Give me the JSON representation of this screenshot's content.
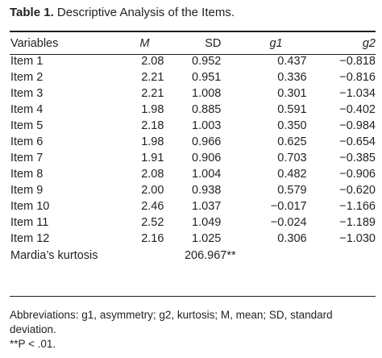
{
  "caption": {
    "label": "Table 1.",
    "text": "Descriptive Analysis of the Items."
  },
  "table": {
    "headers": [
      "Variables",
      "M",
      "SD",
      "g1",
      "g2"
    ],
    "rows": [
      [
        "Item 1",
        "2.08",
        "0.952",
        "0.437",
        "−0.818"
      ],
      [
        "Item 2",
        "2.21",
        "0.951",
        "0.336",
        "−0.816"
      ],
      [
        "Item 3",
        "2.21",
        "1.008",
        "0.301",
        "−1.034"
      ],
      [
        "Item 4",
        "1.98",
        "0.885",
        "0.591",
        "−0.402"
      ],
      [
        "Item 5",
        "2.18",
        "1.003",
        "0.350",
        "−0.984"
      ],
      [
        "Item 6",
        "1.98",
        "0.966",
        "0.625",
        "−0.654"
      ],
      [
        "Item 7",
        "1.91",
        "0.906",
        "0.703",
        "−0.385"
      ],
      [
        "Item 8",
        "2.08",
        "1.004",
        "0.482",
        "−0.906"
      ],
      [
        "Item 9",
        "2.00",
        "0.938",
        "0.579",
        "−0.620"
      ],
      [
        "Item 10",
        "2.46",
        "1.037",
        "−0.017",
        "−1.166"
      ],
      [
        "Item 11",
        "2.52",
        "1.049",
        "−0.024",
        "−1.189"
      ],
      [
        "Item 12",
        "2.16",
        "1.025",
        "0.306",
        "−1.030"
      ]
    ],
    "summary": {
      "label": "Mardia’s kurtosis",
      "value": "206.967**"
    }
  },
  "notes": {
    "abbreviations": "Abbreviations: g1, asymmetry; g2, kurtosis; M, mean; SD, standard deviation.",
    "significance": "**P < .01."
  }
}
